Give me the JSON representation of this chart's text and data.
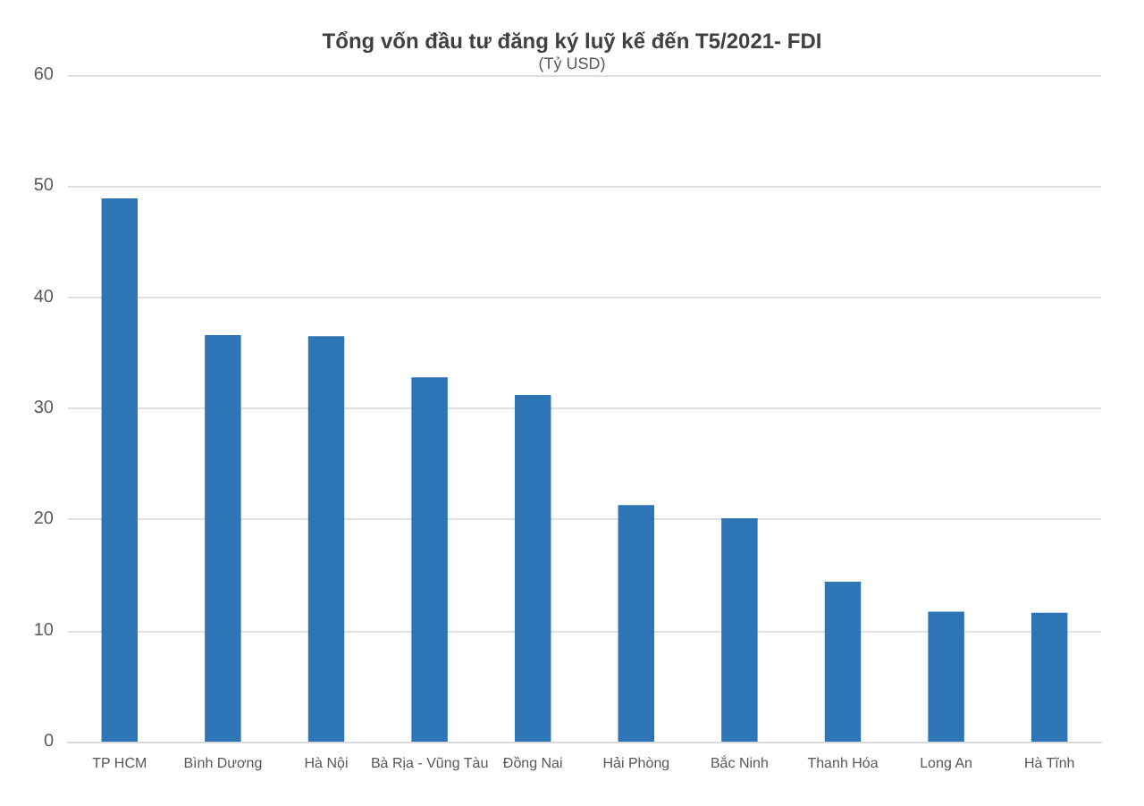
{
  "chart_data": {
    "type": "bar",
    "title": "Tổng vốn đầu tư đăng ký luỹ kế đến T5/2021- FDI",
    "subtitle": "(Tỷ USD)",
    "categories": [
      "TP HCM",
      "Bình Dương",
      "Hà Nội",
      "Bà Rịa - Vũng Tàu",
      "Đồng Nai",
      "Hải Phòng",
      "Bắc Ninh",
      "Thanh Hóa",
      "Long An",
      "Hà Tĩnh"
    ],
    "values": [
      48.9,
      36.6,
      36.5,
      32.8,
      31.2,
      21.3,
      20.1,
      14.4,
      11.7,
      11.6
    ],
    "color": "#2e75b6",
    "ylim": [
      0,
      60
    ],
    "yticks": [
      0,
      10,
      20,
      30,
      40,
      50,
      60
    ],
    "grid": "y"
  }
}
